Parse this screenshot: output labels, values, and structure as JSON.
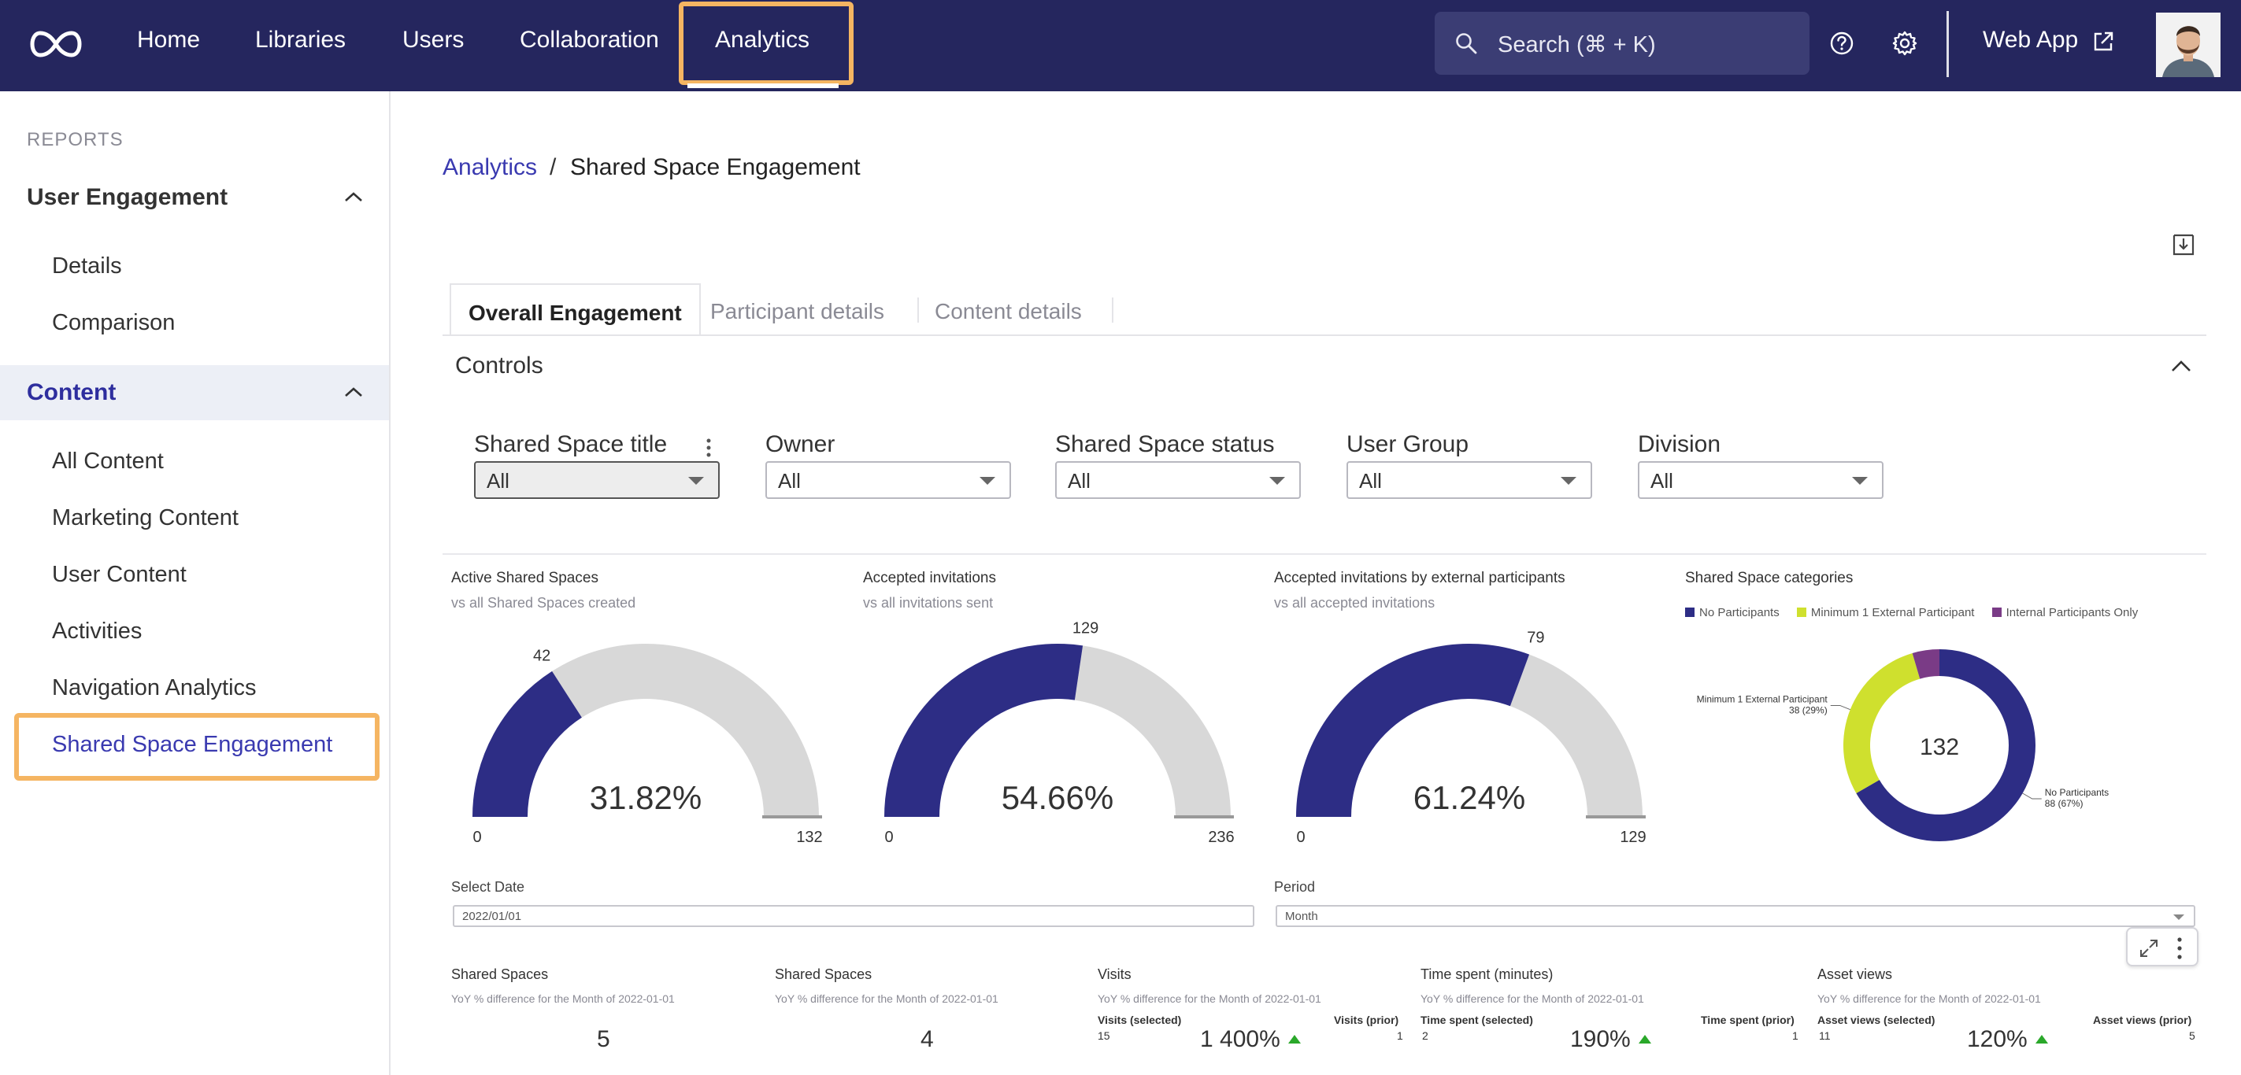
{
  "colors": {
    "navbar": "#25265e",
    "accent": "#3a3ab0",
    "highlight": "#f5b562",
    "gauge_fill": "#2d2d85",
    "gauge_bg": "#d8d8d8",
    "donut_no_participants": "#2d2d85",
    "donut_min_external": "#cfe02e",
    "donut_internal_only": "#7a3b86",
    "trend_up": "#2aa82a"
  },
  "topnav": {
    "logo_icon": "infinity-logo-icon",
    "items": [
      "Home",
      "Libraries",
      "Users",
      "Collaboration",
      "Analytics"
    ],
    "active": "Analytics",
    "search_label": "Search (⌘ + K)",
    "search_icon": "search-icon",
    "help_icon": "help-circle-icon",
    "settings_icon": "gear-icon",
    "webapp_label": "Web App",
    "external_icon": "external-link-icon"
  },
  "sidebar": {
    "header": "REPORTS",
    "sections": [
      {
        "label": "User Engagement",
        "expanded": true,
        "items": [
          "Details",
          "Comparison"
        ]
      },
      {
        "label": "Content",
        "expanded": true,
        "items": [
          "All Content",
          "Marketing Content",
          "User Content",
          "Activities",
          "Navigation Analytics",
          "Shared Space Engagement"
        ]
      }
    ],
    "selected": "Shared Space Engagement"
  },
  "breadcrumb": {
    "parent": "Analytics",
    "separator": "/",
    "current": "Shared Space Engagement"
  },
  "tabs": [
    "Overall Engagement",
    "Participant details",
    "Content details"
  ],
  "active_tab": "Overall Engagement",
  "controls": {
    "title": "Controls",
    "filters": [
      {
        "label": "Shared Space title",
        "value": "All"
      },
      {
        "label": "Owner",
        "value": "All"
      },
      {
        "label": "Shared Space status",
        "value": "All"
      },
      {
        "label": "User Group",
        "value": "All"
      },
      {
        "label": "Division",
        "value": "All"
      }
    ]
  },
  "chart_data": [
    {
      "type": "gauge",
      "title": "Active Shared Spaces",
      "subtitle": "vs all Shared Spaces created",
      "value": 42,
      "min": 0,
      "max": 132,
      "value_label": "42",
      "min_label": "0",
      "max_label": "132",
      "percent_label": "31.82%"
    },
    {
      "type": "gauge",
      "title": "Accepted invitations",
      "subtitle": "vs all invitations sent",
      "value": 129,
      "min": 0,
      "max": 236,
      "value_label": "129",
      "min_label": "0",
      "max_label": "236",
      "percent_label": "54.66%"
    },
    {
      "type": "gauge",
      "title": "Accepted invitations by external participants",
      "subtitle": "vs all accepted invitations",
      "value": 79,
      "min": 0,
      "max": 129,
      "value_label": "79",
      "min_label": "0",
      "max_label": "129",
      "percent_label": "61.24%"
    },
    {
      "type": "pie",
      "title": "Shared Space categories",
      "center_label": "132",
      "legend": [
        "No Participants",
        "Minimum 1 External Participant",
        "Internal Participants Only"
      ],
      "slices": [
        {
          "name": "No Participants",
          "value": 88,
          "label_line1": "No Participants",
          "label_line2": "88 (67%)"
        },
        {
          "name": "Minimum 1 External Participant",
          "value": 38,
          "label_line1": "Minimum 1 External Participant",
          "label_line2": "38 (29%)"
        },
        {
          "name": "Internal Participants Only",
          "value": 6
        }
      ]
    }
  ],
  "date_controls": {
    "select_date_label": "Select Date",
    "select_date_value": "2022/01/01",
    "period_label": "Period",
    "period_value": "Month"
  },
  "kpis": [
    {
      "title": "Shared Spaces",
      "subtitle": "YoY % difference for the Month of 2022-01-01",
      "value": "5"
    },
    {
      "title": "Shared Spaces",
      "subtitle": "YoY % difference for the Month of 2022-01-01",
      "value": "4"
    },
    {
      "title": "Visits",
      "subtitle": "YoY % difference for the Month of 2022-01-01",
      "selected_label": "Visits (selected)",
      "selected_value": "15",
      "prior_label": "Visits (prior)",
      "prior_value": "1",
      "pct": "1 400%"
    },
    {
      "title": "Time spent (minutes)",
      "subtitle": "YoY % difference for the Month of 2022-01-01",
      "selected_label": "Time spent (selected)",
      "selected_value": "2",
      "prior_label": "Time spent (prior)",
      "prior_value": "1",
      "pct": "190%"
    },
    {
      "title": "Asset views",
      "subtitle": "YoY % difference for the Month of 2022-01-01",
      "selected_label": "Asset views (selected)",
      "selected_value": "11",
      "prior_label": "Asset views (prior)",
      "prior_value": "5",
      "pct": "120%"
    }
  ]
}
